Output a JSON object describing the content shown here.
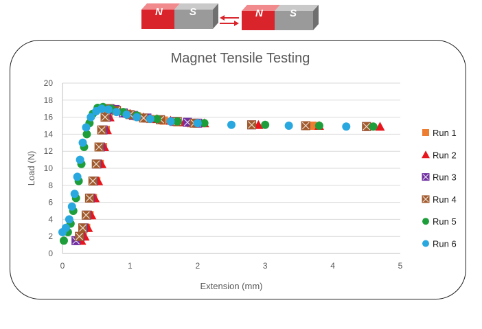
{
  "magnets": {
    "left": {
      "north": "N",
      "south": "S"
    },
    "right": {
      "north": "N",
      "south": "S"
    },
    "colors": {
      "north": "#d9242b",
      "south": "#9a9a9a",
      "arrow": "#d9242b"
    }
  },
  "chart_data": {
    "type": "scatter",
    "title": "Magnet Tensile Testing",
    "xlabel": "Extension (mm)",
    "ylabel": "Load (N)",
    "xlim": [
      0,
      5
    ],
    "ylim": [
      0,
      20
    ],
    "xticks": [
      "0",
      "1",
      "2",
      "3",
      "4",
      "5"
    ],
    "yticks": [
      "0",
      "2",
      "4",
      "6",
      "8",
      "10",
      "12",
      "14",
      "16",
      "18",
      "20"
    ],
    "grid": "horizontal",
    "legend_position": "right",
    "series": [
      {
        "name": "Run 1",
        "marker": "square",
        "color": "#ed7d31",
        "points": [
          [
            0.25,
            1.5
          ],
          [
            0.3,
            2
          ],
          [
            0.35,
            3
          ],
          [
            0.4,
            4.5
          ],
          [
            0.45,
            6.5
          ],
          [
            0.5,
            8.5
          ],
          [
            0.55,
            10.5
          ],
          [
            0.6,
            12.5
          ],
          [
            0.64,
            14.5
          ],
          [
            0.68,
            16
          ],
          [
            0.72,
            17
          ],
          [
            0.8,
            16.8
          ],
          [
            0.95,
            16.4
          ],
          [
            1.1,
            16.1
          ],
          [
            1.3,
            15.8
          ],
          [
            1.5,
            15.6
          ],
          [
            1.7,
            15.4
          ],
          [
            1.9,
            15.3
          ],
          [
            2.8,
            15.1
          ],
          [
            3.7,
            15.0
          ],
          [
            4.5,
            14.9
          ]
        ]
      },
      {
        "name": "Run 2",
        "marker": "triangle",
        "color": "#e8161c",
        "points": [
          [
            0.28,
            1.5
          ],
          [
            0.33,
            2
          ],
          [
            0.38,
            3
          ],
          [
            0.43,
            4.5
          ],
          [
            0.48,
            6.5
          ],
          [
            0.53,
            8.5
          ],
          [
            0.58,
            10.5
          ],
          [
            0.62,
            12.5
          ],
          [
            0.66,
            14.5
          ],
          [
            0.7,
            16
          ],
          [
            0.75,
            17
          ],
          [
            0.85,
            16.7
          ],
          [
            1.0,
            16.4
          ],
          [
            1.2,
            16.0
          ],
          [
            1.4,
            15.8
          ],
          [
            1.6,
            15.6
          ],
          [
            1.8,
            15.4
          ],
          [
            2.1,
            15.3
          ],
          [
            2.9,
            15.1
          ],
          [
            3.8,
            15.0
          ],
          [
            4.7,
            14.9
          ]
        ]
      },
      {
        "name": "Run 3",
        "marker": "square-x",
        "color": "#7030a0",
        "points": [
          [
            0.2,
            1.5
          ],
          [
            0.26,
            2
          ],
          [
            0.31,
            3
          ],
          [
            0.36,
            4.5
          ],
          [
            0.41,
            6.5
          ],
          [
            0.46,
            8.5
          ],
          [
            0.51,
            10.5
          ],
          [
            0.56,
            12.5
          ],
          [
            0.6,
            14.5
          ],
          [
            0.65,
            16
          ],
          [
            0.7,
            17
          ],
          [
            0.78,
            16.9
          ],
          [
            0.9,
            16.5
          ],
          [
            1.05,
            16.2
          ],
          [
            1.25,
            15.9
          ],
          [
            1.45,
            15.7
          ],
          [
            1.65,
            15.5
          ],
          [
            1.85,
            15.4
          ],
          [
            2.0,
            15.3
          ],
          [
            2.8,
            15.1
          ],
          [
            3.6,
            15.0
          ],
          [
            4.5,
            14.9
          ]
        ]
      },
      {
        "name": "Run 4",
        "marker": "square-x",
        "color": "#a05a2c",
        "points": [
          [
            0.25,
            2
          ],
          [
            0.3,
            3
          ],
          [
            0.35,
            4.5
          ],
          [
            0.4,
            6.5
          ],
          [
            0.45,
            8.5
          ],
          [
            0.5,
            10.5
          ],
          [
            0.54,
            12.5
          ],
          [
            0.58,
            14.5
          ],
          [
            0.63,
            16
          ],
          [
            0.68,
            17
          ],
          [
            0.8,
            16.8
          ],
          [
            1.0,
            16.3
          ],
          [
            1.2,
            15.9
          ],
          [
            1.45,
            15.7
          ],
          [
            1.7,
            15.5
          ],
          [
            1.95,
            15.3
          ],
          [
            2.8,
            15.1
          ],
          [
            3.6,
            15.0
          ],
          [
            4.5,
            14.9
          ]
        ]
      },
      {
        "name": "Run 5",
        "marker": "circle",
        "color": "#1e9e3a",
        "points": [
          [
            0.02,
            1.5
          ],
          [
            0.08,
            2.5
          ],
          [
            0.12,
            3.5
          ],
          [
            0.16,
            5
          ],
          [
            0.2,
            6.5
          ],
          [
            0.24,
            8.5
          ],
          [
            0.28,
            10.5
          ],
          [
            0.32,
            12.5
          ],
          [
            0.36,
            14
          ],
          [
            0.4,
            15.3
          ],
          [
            0.45,
            16.4
          ],
          [
            0.52,
            17.1
          ],
          [
            0.6,
            17.2
          ],
          [
            0.72,
            17.0
          ],
          [
            0.9,
            16.6
          ],
          [
            1.1,
            16.2
          ],
          [
            1.4,
            15.8
          ],
          [
            1.7,
            15.5
          ],
          [
            2.1,
            15.3
          ],
          [
            3.0,
            15.1
          ],
          [
            3.8,
            15.0
          ],
          [
            4.6,
            14.9
          ]
        ]
      },
      {
        "name": "Run 6",
        "marker": "circle",
        "color": "#29a8e0",
        "points": [
          [
            0.0,
            2.5
          ],
          [
            0.05,
            3
          ],
          [
            0.1,
            4
          ],
          [
            0.14,
            5.5
          ],
          [
            0.18,
            7
          ],
          [
            0.22,
            9
          ],
          [
            0.26,
            11
          ],
          [
            0.3,
            13
          ],
          [
            0.35,
            14.8
          ],
          [
            0.42,
            16
          ],
          [
            0.5,
            16.7
          ],
          [
            0.58,
            17.0
          ],
          [
            0.68,
            16.9
          ],
          [
            0.8,
            16.6
          ],
          [
            0.95,
            16.3
          ],
          [
            1.1,
            16.0
          ],
          [
            1.3,
            15.8
          ],
          [
            1.6,
            15.5
          ],
          [
            2.0,
            15.3
          ],
          [
            2.5,
            15.1
          ],
          [
            3.35,
            15.0
          ],
          [
            4.2,
            14.9
          ]
        ]
      }
    ]
  }
}
